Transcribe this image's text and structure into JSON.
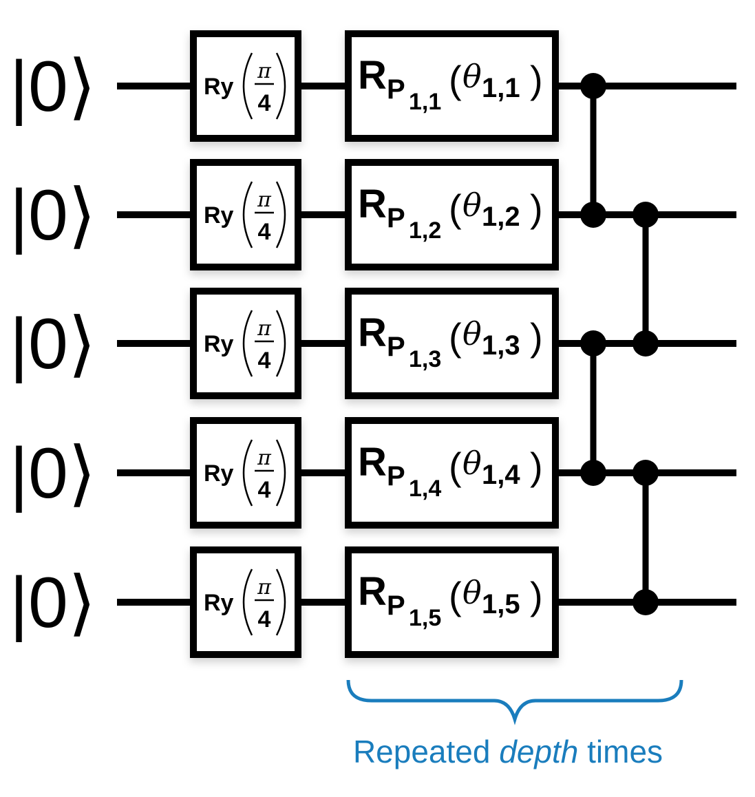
{
  "qubits": [
    {
      "state": "|0⟩",
      "gate1": {
        "name": "Ry",
        "num": "π",
        "den": "4"
      },
      "gate2": {
        "name": "R",
        "sub": "P",
        "subidx": "1,1",
        "param": "θ",
        "paramidx": "1,1"
      }
    },
    {
      "state": "|0⟩",
      "gate1": {
        "name": "Ry",
        "num": "π",
        "den": "4"
      },
      "gate2": {
        "name": "R",
        "sub": "P",
        "subidx": "1,2",
        "param": "θ",
        "paramidx": "1,2"
      }
    },
    {
      "state": "|0⟩",
      "gate1": {
        "name": "Ry",
        "num": "π",
        "den": "4"
      },
      "gate2": {
        "name": "R",
        "sub": "P",
        "subidx": "1,3",
        "param": "θ",
        "paramidx": "1,3"
      }
    },
    {
      "state": "|0⟩",
      "gate1": {
        "name": "Ry",
        "num": "π",
        "den": "4"
      },
      "gate2": {
        "name": "R",
        "sub": "P",
        "subidx": "1,4",
        "param": "θ",
        "paramidx": "1,4"
      }
    },
    {
      "state": "|0⟩",
      "gate1": {
        "name": "Ry",
        "num": "π",
        "den": "4"
      },
      "gate2": {
        "name": "R",
        "sub": "P",
        "subidx": "1,5",
        "param": "θ",
        "paramidx": "1,5"
      }
    }
  ],
  "entanglers": [
    {
      "column": 1,
      "qubits": [
        0,
        1
      ]
    },
    {
      "column": 1,
      "qubits": [
        2,
        3
      ]
    },
    {
      "column": 2,
      "qubits": [
        1,
        2
      ]
    },
    {
      "column": 2,
      "qubits": [
        3,
        4
      ]
    }
  ],
  "brace": {
    "text_before": "Repeated ",
    "text_emph": "depth",
    "text_after": " times",
    "color": "#1a7dbd"
  }
}
